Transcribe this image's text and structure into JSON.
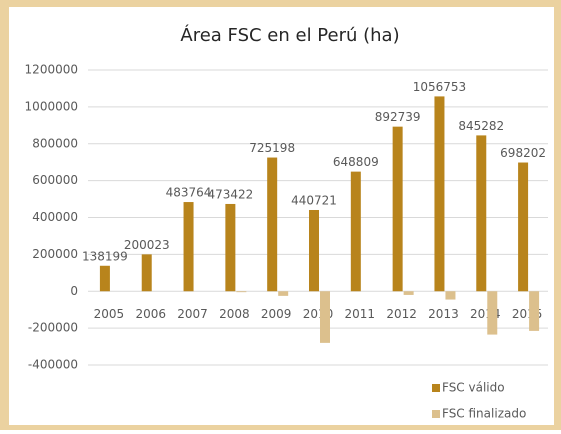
{
  "chart_data": {
    "type": "bar",
    "title": "Área FSC en el Perú (ha)",
    "categories": [
      "2005",
      "2006",
      "2007",
      "2008",
      "2009",
      "2010",
      "2011",
      "2012",
      "2013",
      "2014",
      "2015"
    ],
    "series": [
      {
        "name": "FSC válido",
        "color": "#b8841c",
        "values": [
          138199,
          200023,
          483764,
          473422,
          725198,
          440721,
          648809,
          892739,
          1056753,
          845282,
          698202
        ]
      },
      {
        "name": "FSC finalizado",
        "color": "#dcc08d",
        "values": [
          0,
          0,
          0,
          -5000,
          -25000,
          -280000,
          0,
          -20000,
          -45000,
          -235000,
          -215000
        ]
      }
    ],
    "ylim": [
      -400000,
      1200000
    ],
    "yticks": [
      -400000,
      -200000,
      0,
      200000,
      400000,
      600000,
      800000,
      1000000,
      1200000
    ],
    "grid": true,
    "legend": "bottom-right"
  }
}
